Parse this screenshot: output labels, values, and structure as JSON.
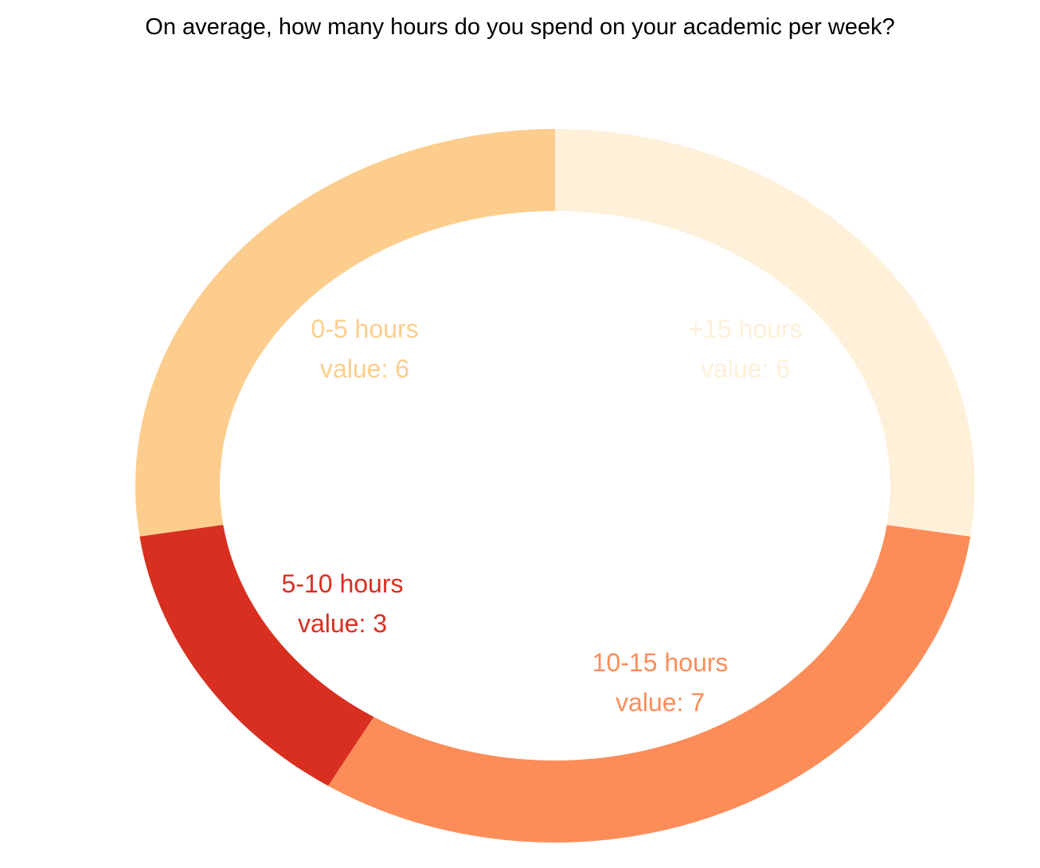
{
  "chart_data": {
    "type": "pie",
    "variant": "donut",
    "title": "On average, how many hours do you spend on your academic per week?",
    "slices": [
      {
        "label": "0-5 hours",
        "value": 6,
        "value_text": "value: 6",
        "color": "#fccd8d"
      },
      {
        "label": "5-10 hours",
        "value": 3,
        "value_text": "value: 3",
        "color": "#d82f20"
      },
      {
        "label": "10-15 hours",
        "value": 7,
        "value_text": "value: 7",
        "color": "#fc8d59"
      },
      {
        "label": "+15 hours",
        "value": 6,
        "value_text": "value: 6",
        "color": "#fef0d9"
      }
    ],
    "start_angle_deg": 0,
    "direction": "counterclockwise",
    "legend": "none"
  }
}
